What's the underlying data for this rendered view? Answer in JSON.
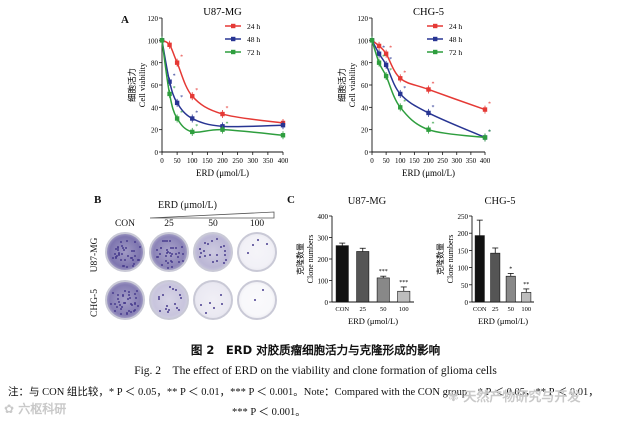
{
  "panels": {
    "A": "A",
    "B": "B",
    "C": "C"
  },
  "line_ylabel_cn": "细胞活力",
  "line_ylabel_en": "Cell viability",
  "line_xlabel": "ERD (μmol/L)",
  "bar_ylabel_cn": "克隆数量",
  "bar_ylabel_en": "Clone numbers",
  "bar_xlabel": "ERD (μmol/L)",
  "colors": {
    "h24": "#e53935",
    "h48": "#283593",
    "h72": "#2e9e3e",
    "bar_con": "#111111",
    "bar_25": "#555555",
    "bar_50": "#888888",
    "bar_100": "#bdbdbd",
    "dish": "#4a3e8f"
  },
  "panelB": {
    "header": "ERD (μmol/L)",
    "columns": [
      "CON",
      "25",
      "50",
      "100"
    ],
    "rows": [
      "U87-MG",
      "CHG-5"
    ]
  },
  "chart_data": [
    {
      "type": "line",
      "title": "U87-MG",
      "xlabel": "ERD (μmol/L)",
      "ylabel": "细胞活力 Cell viability",
      "xlim": [
        0,
        400
      ],
      "ylim": [
        0,
        120
      ],
      "xticks": [
        "0",
        "50",
        "100",
        "150",
        "200",
        "250",
        "300",
        "350",
        "400"
      ],
      "yticks": [
        "0",
        "20",
        "40",
        "60",
        "80",
        "100",
        "120"
      ],
      "series": [
        {
          "name": "24 h",
          "x": [
            0,
            25,
            50,
            100,
            200,
            400
          ],
          "y": [
            100,
            96,
            80,
            50,
            34,
            26
          ],
          "sig": [
            "",
            "",
            "*",
            "*",
            "*",
            ""
          ]
        },
        {
          "name": "48 h",
          "x": [
            0,
            25,
            50,
            100,
            200,
            400
          ],
          "y": [
            100,
            63,
            44,
            30,
            23,
            24
          ],
          "sig": [
            "",
            "*",
            "*",
            "*",
            "",
            ""
          ]
        },
        {
          "name": "72 h",
          "x": [
            0,
            25,
            50,
            100,
            200,
            400
          ],
          "y": [
            100,
            52,
            30,
            18,
            20,
            15
          ],
          "sig": [
            "",
            "*",
            "*",
            "*",
            "*",
            ""
          ]
        }
      ]
    },
    {
      "type": "line",
      "title": "CHG-5",
      "xlabel": "ERD (μmol/L)",
      "ylabel": "细胞活力 Cell viability",
      "xlim": [
        0,
        400
      ],
      "ylim": [
        0,
        120
      ],
      "xticks": [
        "0",
        "50",
        "100",
        "150",
        "200",
        "250",
        "300",
        "350",
        "400"
      ],
      "yticks": [
        "0",
        "20",
        "40",
        "60",
        "80",
        "100",
        "120"
      ],
      "series": [
        {
          "name": "24 h",
          "x": [
            0,
            25,
            50,
            100,
            200,
            400
          ],
          "y": [
            100,
            95,
            88,
            66,
            56,
            38
          ],
          "sig": [
            "",
            "",
            "*",
            "*",
            "*",
            "*"
          ]
        },
        {
          "name": "48 h",
          "x": [
            0,
            25,
            50,
            100,
            200,
            400
          ],
          "y": [
            100,
            88,
            78,
            52,
            35,
            13
          ],
          "sig": [
            "",
            "*",
            "*",
            "*",
            "*",
            "*"
          ]
        },
        {
          "name": "72 h",
          "x": [
            0,
            25,
            50,
            100,
            200,
            400
          ],
          "y": [
            100,
            80,
            68,
            40,
            20,
            13
          ],
          "sig": [
            "",
            "*",
            "*",
            "*",
            "*",
            "*"
          ]
        }
      ]
    },
    {
      "type": "bar",
      "title": "U87-MG",
      "categories": [
        "CON",
        "25",
        "50",
        "100"
      ],
      "values": [
        262,
        235,
        112,
        50
      ],
      "errors": [
        12,
        15,
        8,
        20
      ],
      "sig": [
        "",
        "",
        "***",
        "***"
      ],
      "ylim": [
        0,
        400
      ],
      "yticks": [
        "0",
        "100",
        "200",
        "300",
        "400"
      ],
      "xlabel": "ERD (μmol/L)",
      "ylabel": "克隆数量 Clone numbers"
    },
    {
      "type": "bar",
      "title": "CHG-5",
      "categories": [
        "CON",
        "25",
        "50",
        "100"
      ],
      "values": [
        193,
        142,
        75,
        28
      ],
      "errors": [
        45,
        15,
        8,
        10
      ],
      "sig": [
        "",
        "",
        "*",
        "**"
      ],
      "ylim": [
        0,
        250
      ],
      "yticks": [
        "0",
        "50",
        "100",
        "150",
        "200",
        "250"
      ],
      "xlabel": "ERD (μmol/L)",
      "ylabel": "克隆数量 Clone numbers"
    }
  ],
  "caption_cn": "图 2　ERD 对胶质瘤细胞活力与克隆形成的影响",
  "caption_en": "Fig. 2　The effect of ERD on the viability and clone formation of glioma cells",
  "note_line1": "注：与 CON 组比较，* P ＜ 0.05，** P ＜ 0.01，*** P ＜ 0.001。Note：Compared with the CON group，* P ＜ 0.05，** P ＜ 0.01，",
  "note_line2": "*** P ＜ 0.001。",
  "watermark_left": "六枢科研",
  "watermark_right": "天然产物研究与开发"
}
